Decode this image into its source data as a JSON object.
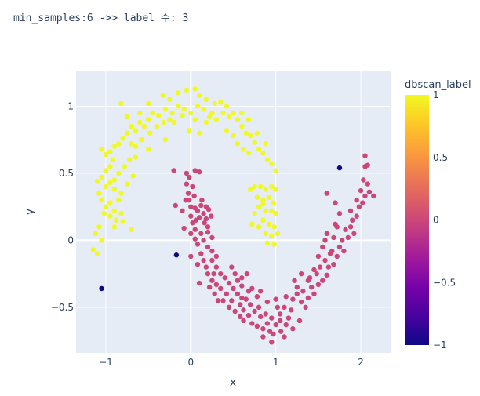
{
  "title": "min_samples:6 ->> label 수: 3",
  "chart_data": {
    "type": "scatter",
    "xlabel": "x",
    "ylabel": "y",
    "xlim": [
      -1.35,
      2.35
    ],
    "ylim": [
      -0.84,
      1.26
    ],
    "xticks": [
      -1,
      0,
      1,
      2
    ],
    "xtick_labels": [
      "−1",
      "0",
      "1",
      "2"
    ],
    "yticks": [
      -0.5,
      0,
      0.5,
      1
    ],
    "ytick_labels": [
      "−0.5",
      "0",
      "0.5",
      "1"
    ],
    "grid": true,
    "colorbar": {
      "title": "dbscan_label",
      "range": [
        -1,
        1
      ],
      "ticks": [
        1,
        0.5,
        0,
        -0.5,
        -1
      ],
      "tick_labels": [
        "1",
        "0.5",
        "0",
        "−0.5",
        "−1"
      ],
      "colors": [
        "#0d0887",
        "#46039f",
        "#7201a8",
        "#9c179e",
        "#bd3786",
        "#d8576b",
        "#ed7953",
        "#fb9f3a",
        "#fdca26",
        "#f0f921"
      ]
    },
    "point_colors": {
      "-1": "#0d0887",
      "0": "#cc4778",
      "1": "#f0f921"
    },
    "series": [
      {
        "label": -1,
        "points": [
          [
            -1.05,
            -0.36
          ],
          [
            -0.17,
            -0.11
          ],
          [
            1.75,
            0.54
          ]
        ]
      },
      {
        "label": 0,
        "points": [
          [
            -0.2,
            0.52
          ],
          [
            -0.05,
            0.5
          ],
          [
            0.05,
            0.52
          ],
          [
            0.1,
            0.51
          ],
          [
            -0.02,
            0.47
          ],
          [
            -0.05,
            0.42
          ],
          [
            0.02,
            0.4
          ],
          [
            -0.03,
            0.35
          ],
          [
            0.04,
            0.33
          ],
          [
            -0.06,
            0.3
          ],
          [
            -0.18,
            0.26
          ],
          [
            0.0,
            0.25
          ],
          [
            0.05,
            0.24
          ],
          [
            0.12,
            0.26
          ],
          [
            0.18,
            0.25
          ],
          [
            0.08,
            0.22
          ],
          [
            0.15,
            0.2
          ],
          [
            0.21,
            0.23
          ],
          [
            0.0,
            0.18
          ],
          [
            0.1,
            0.17
          ],
          [
            0.18,
            0.16
          ],
          [
            0.02,
            0.13
          ],
          [
            0.16,
            0.13
          ],
          [
            0.05,
            0.08
          ],
          [
            0.2,
            0.1
          ],
          [
            0.0,
            0.05
          ],
          [
            0.12,
            0.05
          ],
          [
            0.2,
            0.06
          ],
          [
            0.05,
            0.01
          ],
          [
            0.15,
            0.0
          ],
          [
            0.2,
            -0.05
          ],
          [
            0.08,
            -0.03
          ],
          [
            0.12,
            -0.1
          ],
          [
            0.25,
            -0.08
          ],
          [
            0.15,
            -0.15
          ],
          [
            0.25,
            -0.15
          ],
          [
            0.18,
            -0.2
          ],
          [
            0.3,
            -0.2
          ],
          [
            0.2,
            -0.25
          ],
          [
            0.35,
            -0.25
          ],
          [
            0.25,
            -0.3
          ],
          [
            0.4,
            -0.28
          ],
          [
            0.3,
            -0.33
          ],
          [
            0.45,
            -0.32
          ],
          [
            0.35,
            -0.36
          ],
          [
            0.22,
            -0.35
          ],
          [
            0.5,
            -0.36
          ],
          [
            0.28,
            -0.4
          ],
          [
            0.42,
            -0.4
          ],
          [
            0.55,
            -0.4
          ],
          [
            0.38,
            -0.45
          ],
          [
            0.48,
            -0.45
          ],
          [
            0.6,
            -0.43
          ],
          [
            0.45,
            -0.5
          ],
          [
            0.58,
            -0.48
          ],
          [
            0.65,
            -0.44
          ],
          [
            0.52,
            -0.53
          ],
          [
            0.62,
            -0.52
          ],
          [
            0.7,
            -0.48
          ],
          [
            0.58,
            -0.57
          ],
          [
            0.68,
            -0.56
          ],
          [
            0.75,
            -0.53
          ],
          [
            0.8,
            -0.5
          ],
          [
            0.62,
            -0.6
          ],
          [
            0.72,
            -0.62
          ],
          [
            0.82,
            -0.57
          ],
          [
            0.88,
            -0.55
          ],
          [
            0.78,
            -0.64
          ],
          [
            0.9,
            -0.62
          ],
          [
            0.95,
            -0.58
          ],
          [
            0.85,
            -0.66
          ],
          [
            0.93,
            -0.68
          ],
          [
            1.0,
            -0.63
          ],
          [
            1.05,
            -0.6
          ],
          [
            0.97,
            -0.7
          ],
          [
            1.06,
            -0.68
          ],
          [
            1.12,
            -0.63
          ],
          [
            1.05,
            -0.55
          ],
          [
            1.1,
            -0.5
          ],
          [
            1.18,
            -0.52
          ],
          [
            1.2,
            -0.44
          ],
          [
            1.25,
            -0.4
          ],
          [
            1.32,
            -0.38
          ],
          [
            1.3,
            -0.46
          ],
          [
            1.38,
            -0.43
          ],
          [
            1.35,
            -0.5
          ],
          [
            1.45,
            -0.4
          ],
          [
            1.42,
            -0.35
          ],
          [
            1.5,
            -0.33
          ],
          [
            1.55,
            -0.3
          ],
          [
            1.48,
            -0.25
          ],
          [
            1.6,
            -0.26
          ],
          [
            1.62,
            -0.2
          ],
          [
            1.58,
            -0.15
          ],
          [
            1.68,
            -0.18
          ],
          [
            1.72,
            -0.12
          ],
          [
            1.66,
            -0.08
          ],
          [
            1.75,
            -0.05
          ],
          [
            1.8,
            -0.08
          ],
          [
            1.78,
            0.0
          ],
          [
            1.85,
            0.02
          ],
          [
            1.82,
            0.08
          ],
          [
            1.88,
            0.1
          ],
          [
            1.92,
            0.05
          ],
          [
            1.9,
            0.15
          ],
          [
            1.95,
            0.18
          ],
          [
            1.88,
            0.22
          ],
          [
            1.98,
            0.25
          ],
          [
            2.02,
            0.28
          ],
          [
            1.95,
            0.3
          ],
          [
            2.05,
            0.33
          ],
          [
            2.0,
            0.37
          ],
          [
            2.1,
            0.36
          ],
          [
            2.15,
            0.33
          ],
          [
            2.08,
            0.42
          ],
          [
            2.03,
            0.45
          ],
          [
            2.05,
            0.55
          ],
          [
            2.08,
            0.56
          ],
          [
            2.05,
            0.63
          ],
          [
            1.6,
            0.35
          ],
          [
            1.7,
            0.28
          ],
          [
            1.75,
            0.2
          ],
          [
            1.7,
            0.12
          ],
          [
            1.6,
            0.05
          ],
          [
            1.55,
            -0.05
          ],
          [
            1.45,
            -0.22
          ],
          [
            1.4,
            -0.28
          ],
          [
            1.25,
            -0.35
          ],
          [
            0.78,
            -0.42
          ],
          [
            0.9,
            -0.46
          ],
          [
            1.0,
            -0.44
          ],
          [
            0.68,
            -0.38
          ],
          [
            0.32,
            -0.45
          ],
          [
            0.85,
            -0.72
          ],
          [
            0.95,
            -0.76
          ],
          [
            1.1,
            -0.72
          ],
          [
            1.2,
            -0.66
          ],
          [
            1.28,
            -0.6
          ],
          [
            1.15,
            -0.58
          ],
          [
            0.55,
            -0.3
          ],
          [
            0.6,
            -0.34
          ],
          [
            0.72,
            -0.36
          ],
          [
            1.22,
            -0.3
          ],
          [
            1.38,
            -0.3
          ],
          [
            1.52,
            -0.2
          ],
          [
            1.64,
            -0.1
          ],
          [
            0.1,
            -0.32
          ],
          [
            0.25,
            0.02
          ],
          [
            0.3,
            -0.12
          ],
          [
            -0.1,
            0.22
          ],
          [
            -0.02,
            0.3
          ],
          [
            0.06,
            0.15
          ],
          [
            0.13,
            0.3
          ],
          [
            -0.08,
            0.09
          ],
          [
            0.24,
            0.18
          ],
          [
            0.0,
            -0.12
          ],
          [
            0.08,
            -0.18
          ],
          [
            0.27,
            -0.25
          ],
          [
            0.48,
            -0.2
          ],
          [
            0.52,
            -0.25
          ],
          [
            0.6,
            -0.28
          ],
          [
            0.66,
            -0.25
          ],
          [
            0.82,
            -0.38
          ],
          [
            1.02,
            -0.5
          ],
          [
            1.12,
            -0.42
          ],
          [
            1.3,
            -0.25
          ],
          [
            1.5,
            -0.12
          ],
          [
            1.58,
            0.0
          ],
          [
            1.68,
            0.02
          ],
          [
            1.72,
            0.1
          ]
        ]
      },
      {
        "label": 1,
        "points": [
          [
            -0.82,
            1.02
          ],
          [
            -0.5,
            1.02
          ],
          [
            -0.33,
            1.08
          ],
          [
            -0.25,
            1.05
          ],
          [
            -0.15,
            1.1
          ],
          [
            -0.05,
            1.12
          ],
          [
            0.05,
            1.13
          ],
          [
            0.1,
            1.08
          ],
          [
            0.18,
            1.05
          ],
          [
            0.28,
            1.02
          ],
          [
            0.35,
            1.03
          ],
          [
            0.42,
            1.0
          ],
          [
            0.5,
            0.95
          ],
          [
            0.55,
            0.9
          ],
          [
            0.6,
            0.85
          ],
          [
            0.65,
            0.8
          ],
          [
            0.7,
            0.78
          ],
          [
            0.75,
            0.73
          ],
          [
            0.8,
            0.68
          ],
          [
            0.85,
            0.65
          ],
          [
            0.9,
            0.6
          ],
          [
            0.95,
            0.57
          ],
          [
            1.0,
            0.52
          ],
          [
            0.88,
            0.72
          ],
          [
            0.78,
            0.8
          ],
          [
            0.68,
            0.9
          ],
          [
            0.6,
            0.95
          ],
          [
            0.45,
            0.92
          ],
          [
            0.38,
            0.95
          ],
          [
            0.3,
            0.9
          ],
          [
            0.22,
            0.92
          ],
          [
            0.15,
            0.98
          ],
          [
            0.08,
            1.0
          ],
          [
            0.0,
            0.95
          ],
          [
            -0.08,
            0.98
          ],
          [
            -0.15,
            1.0
          ],
          [
            -0.22,
            0.95
          ],
          [
            -0.3,
            0.98
          ],
          [
            -0.38,
            0.93
          ],
          [
            -0.45,
            0.95
          ],
          [
            -0.5,
            0.9
          ],
          [
            -0.55,
            0.85
          ],
          [
            -0.6,
            0.88
          ],
          [
            -0.65,
            0.82
          ],
          [
            -0.7,
            0.85
          ],
          [
            -0.75,
            0.8
          ],
          [
            -0.8,
            0.76
          ],
          [
            -0.85,
            0.72
          ],
          [
            -0.9,
            0.7
          ],
          [
            -0.95,
            0.66
          ],
          [
            -1.0,
            0.64
          ],
          [
            -1.05,
            0.68
          ],
          [
            -0.92,
            0.6
          ],
          [
            -0.95,
            0.55
          ],
          [
            -1.0,
            0.52
          ],
          [
            -1.05,
            0.47
          ],
          [
            -1.1,
            0.44
          ],
          [
            -1.0,
            0.4
          ],
          [
            -0.95,
            0.43
          ],
          [
            -0.9,
            0.45
          ],
          [
            -0.85,
            0.5
          ],
          [
            -0.78,
            0.55
          ],
          [
            -0.72,
            0.6
          ],
          [
            -0.65,
            0.7
          ],
          [
            -0.58,
            0.75
          ],
          [
            -0.48,
            0.8
          ],
          [
            -0.4,
            0.85
          ],
          [
            -0.32,
            0.88
          ],
          [
            -0.25,
            0.9
          ],
          [
            -0.1,
            0.93
          ],
          [
            0.05,
            0.9
          ],
          [
            0.18,
            0.88
          ],
          [
            0.25,
            0.95
          ],
          [
            -0.2,
            0.88
          ],
          [
            -0.6,
            0.95
          ],
          [
            -0.75,
            0.92
          ],
          [
            -0.7,
            0.72
          ],
          [
            -1.08,
            0.35
          ],
          [
            -1.05,
            0.3
          ],
          [
            -1.0,
            0.25
          ],
          [
            -0.95,
            0.28
          ],
          [
            -0.9,
            0.22
          ],
          [
            -0.85,
            0.3
          ],
          [
            -1.02,
            0.2
          ],
          [
            -0.95,
            0.18
          ],
          [
            -0.88,
            0.15
          ],
          [
            -0.82,
            0.2
          ],
          [
            -1.08,
            0.1
          ],
          [
            -1.12,
            0.05
          ],
          [
            -1.05,
            0.0
          ],
          [
            -1.15,
            -0.07
          ],
          [
            -1.1,
            -0.1
          ],
          [
            -0.9,
            0.1
          ],
          [
            -0.8,
            0.14
          ],
          [
            -0.7,
            0.08
          ],
          [
            -0.82,
            0.35
          ],
          [
            -0.75,
            0.42
          ],
          [
            -0.68,
            0.48
          ],
          [
            -0.9,
            0.38
          ],
          [
            0.7,
            0.38
          ],
          [
            0.75,
            0.4
          ],
          [
            0.82,
            0.4
          ],
          [
            0.88,
            0.38
          ],
          [
            0.95,
            0.4
          ],
          [
            1.0,
            0.38
          ],
          [
            0.78,
            0.32
          ],
          [
            0.85,
            0.3
          ],
          [
            0.92,
            0.32
          ],
          [
            0.97,
            0.28
          ],
          [
            0.8,
            0.25
          ],
          [
            0.88,
            0.22
          ],
          [
            0.95,
            0.22
          ],
          [
            1.0,
            0.2
          ],
          [
            0.85,
            0.15
          ],
          [
            0.92,
            0.12
          ],
          [
            0.98,
            0.1
          ],
          [
            0.88,
            0.05
          ],
          [
            0.95,
            0.03
          ],
          [
            1.02,
            0.05
          ],
          [
            0.8,
            0.1
          ],
          [
            0.75,
            0.2
          ],
          [
            0.72,
            0.12
          ],
          [
            0.9,
            -0.02
          ],
          [
            0.98,
            -0.03
          ],
          [
            0.85,
            0.27
          ],
          [
            0.55,
            0.72
          ],
          [
            0.62,
            0.68
          ],
          [
            0.68,
            0.65
          ],
          [
            0.5,
            0.78
          ],
          [
            0.42,
            0.82
          ],
          [
            -0.02,
            0.82
          ],
          [
            0.1,
            0.8
          ],
          [
            -0.65,
            0.62
          ],
          [
            -0.5,
            0.68
          ],
          [
            -0.3,
            0.75
          ]
        ]
      }
    ]
  }
}
